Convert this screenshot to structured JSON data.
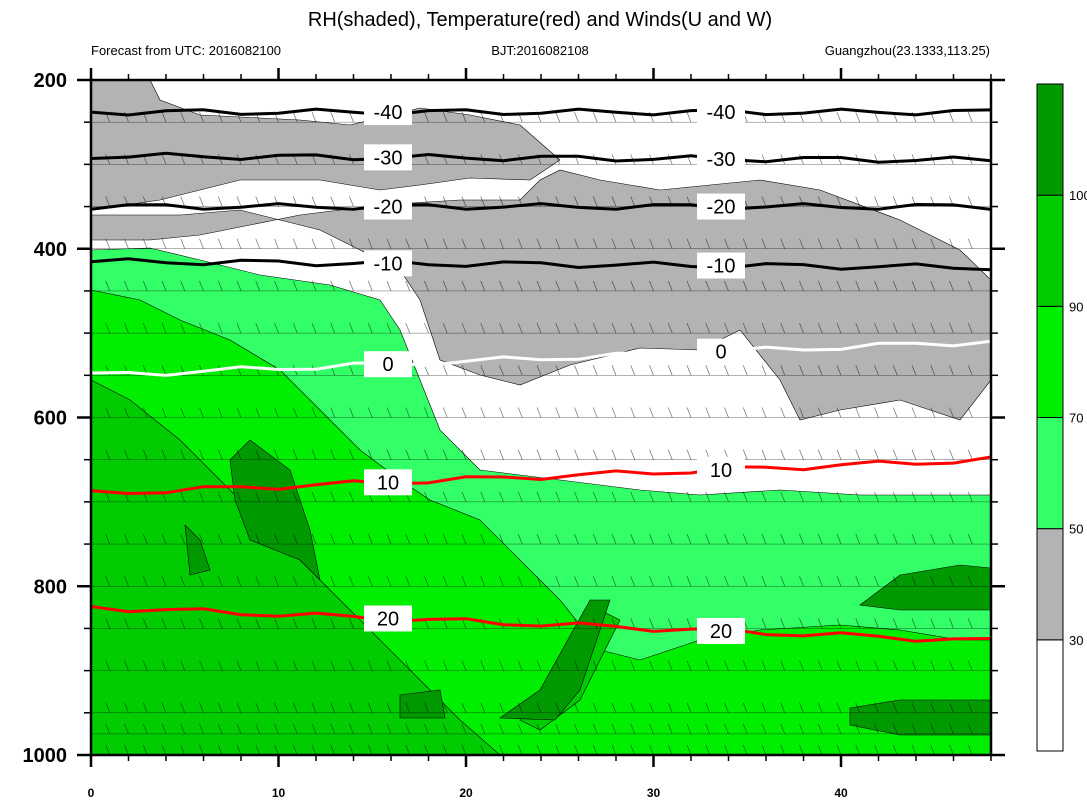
{
  "chart_data": {
    "type": "contour",
    "title": "RH(shaded), Temperature(red) and Winds(U and W)",
    "left_string": "Forecast from UTC: 2016082100",
    "center_string": "BJT:2016082108",
    "right_string": "Guangzhou(23.1333,113.25)",
    "xlim": [
      0,
      48
    ],
    "x_ticks": [
      0,
      10,
      20,
      30,
      40
    ],
    "x_tick_labels": [
      "0",
      "10",
      "20",
      "30",
      "40"
    ],
    "ylim": [
      200,
      1000
    ],
    "y_reversed": true,
    "y_ticks": [
      200,
      400,
      600,
      800,
      1000
    ],
    "y_tick_labels": [
      "200",
      "400",
      "600",
      "800",
      "1000"
    ],
    "pressure_levels": [
      200,
      250,
      300,
      350,
      400,
      450,
      500,
      550,
      600,
      650,
      700,
      750,
      800,
      850,
      900,
      950,
      975,
      1000
    ],
    "colorbar": {
      "levels": [
        30,
        50,
        70,
        90,
        100
      ],
      "tick_labels": [
        "30",
        "50",
        "70",
        "90",
        "100"
      ],
      "colors": [
        "#ffffff",
        "#b3b3b3",
        "#33ff66",
        "#00ee00",
        "#00cc00",
        "#009900"
      ]
    },
    "temperature_contours": [
      {
        "level": -40,
        "label": "-40",
        "color": "#000000",
        "p": [
          238,
          238
        ]
      },
      {
        "level": -30,
        "label": "-30",
        "color": "#000000",
        "p": [
          290,
          295
        ]
      },
      {
        "level": -20,
        "label": "-20",
        "color": "#000000",
        "p": [
          350,
          350
        ]
      },
      {
        "level": -10,
        "label": "-10",
        "color": "#000000",
        "p": [
          415,
          422
        ]
      },
      {
        "level": 0,
        "label": "0",
        "color": "#ffffff",
        "p": [
          550,
          510
        ]
      },
      {
        "level": 10,
        "label": "10",
        "color": "#ff0000",
        "p": [
          690,
          650
        ]
      },
      {
        "level": 20,
        "label": "20",
        "color": "#ff0000",
        "p": [
          825,
          865
        ]
      }
    ]
  }
}
